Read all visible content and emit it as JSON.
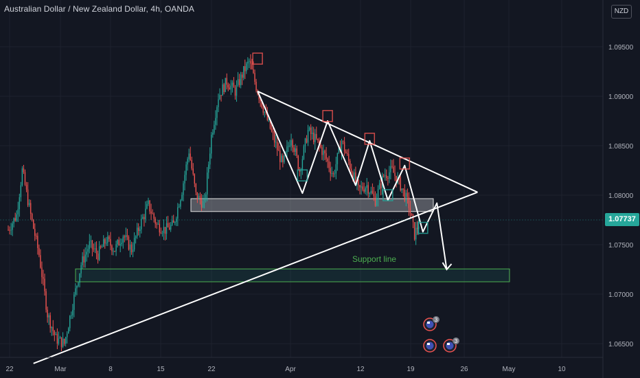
{
  "header": {
    "title": "Australian Dollar / New Zealand Dollar, 4h, OANDA",
    "currency_badge": "NZD"
  },
  "current_price": "1.07737",
  "colors": {
    "background": "#131722",
    "up": "#26a69a",
    "down": "#ef5350",
    "drawing": "#ffffff",
    "support": "#4caf50",
    "price_tag": "#26a69a"
  },
  "chart_data": {
    "type": "candlestick",
    "symbol": "AUDNZD",
    "timeframe": "4h",
    "x_ticks": [
      "22",
      "Mar",
      "8",
      "15",
      "22",
      "Apr",
      "12",
      "19",
      "26",
      "May",
      "10"
    ],
    "y_ticks": [
      "1.09500",
      "1.09000",
      "1.08500",
      "1.08000",
      "1.07500",
      "1.07000",
      "1.06500"
    ],
    "ylim": [
      1.0625,
      1.0975
    ],
    "price_path": [
      [
        0,
        1.0765
      ],
      [
        0.6,
        1.078
      ],
      [
        1.0,
        1.0825
      ],
      [
        1.6,
        1.078
      ],
      [
        2.2,
        1.074
      ],
      [
        2.8,
        1.068
      ],
      [
        3.4,
        1.0655
      ],
      [
        4.0,
        1.065
      ],
      [
        4.6,
        1.069
      ],
      [
        5.2,
        1.073
      ],
      [
        5.8,
        1.075
      ],
      [
        6.4,
        1.074
      ],
      [
        7.0,
        1.0755
      ],
      [
        7.6,
        1.0745
      ],
      [
        8.2,
        1.076
      ],
      [
        8.8,
        1.0745
      ],
      [
        9.4,
        1.077
      ],
      [
        10.0,
        1.079
      ],
      [
        10.6,
        1.077
      ],
      [
        11.2,
        1.0765
      ],
      [
        11.8,
        1.077
      ],
      [
        12.4,
        1.0805
      ],
      [
        12.9,
        1.0845
      ],
      [
        13.4,
        1.08
      ],
      [
        14.0,
        1.079
      ],
      [
        14.5,
        1.086
      ],
      [
        15.0,
        1.09
      ],
      [
        15.6,
        1.0915
      ],
      [
        16.2,
        1.0905
      ],
      [
        16.8,
        1.0925
      ],
      [
        17.2,
        1.0935
      ],
      [
        17.8,
        1.0905
      ],
      [
        18.4,
        1.088
      ],
      [
        19.0,
        1.0855
      ],
      [
        19.6,
        1.083
      ],
      [
        20.2,
        1.086
      ],
      [
        20.8,
        1.0825
      ],
      [
        21.4,
        1.0865
      ],
      [
        22.0,
        1.0855
      ],
      [
        22.6,
        1.084
      ],
      [
        23.2,
        1.082
      ],
      [
        23.8,
        1.0855
      ],
      [
        24.4,
        1.083
      ],
      [
        25.0,
        1.0805
      ],
      [
        25.6,
        1.081
      ],
      [
        26.2,
        1.0795
      ],
      [
        26.8,
        1.082
      ],
      [
        27.4,
        1.0825
      ],
      [
        28.0,
        1.081
      ],
      [
        28.6,
        1.079
      ],
      [
        29.0,
        1.076
      ],
      [
        29.4,
        1.0775
      ]
    ],
    "drawings": {
      "wedge_upper_line": [
        [
          17.8,
          1.0905
        ],
        [
          33.5,
          1.0803
        ]
      ],
      "wedge_lower_line": [
        [
          1.8,
          1.063
        ],
        [
          33.5,
          1.0803
        ]
      ],
      "zigzag": [
        [
          17.8,
          1.0905
        ],
        [
          21.0,
          1.0802
        ],
        [
          22.8,
          1.0875
        ],
        [
          24.8,
          1.081
        ],
        [
          25.8,
          1.0855
        ],
        [
          27.1,
          1.0795
        ],
        [
          28.3,
          1.083
        ],
        [
          29.6,
          1.0763
        ],
        [
          30.6,
          1.0792
        ],
        [
          31.3,
          1.0725
        ]
      ],
      "resistance_zone": [
        1.07835,
        1.07965
      ],
      "support_zone": [
        1.07125,
        1.07255
      ],
      "support_label": "Support line"
    }
  },
  "event_markers": [
    {
      "icon": "nz-flag-icon",
      "count": "3"
    },
    {
      "icon": "nz-flag-icon",
      "count": ""
    },
    {
      "icon": "nz-flag-icon",
      "count": "3"
    }
  ]
}
